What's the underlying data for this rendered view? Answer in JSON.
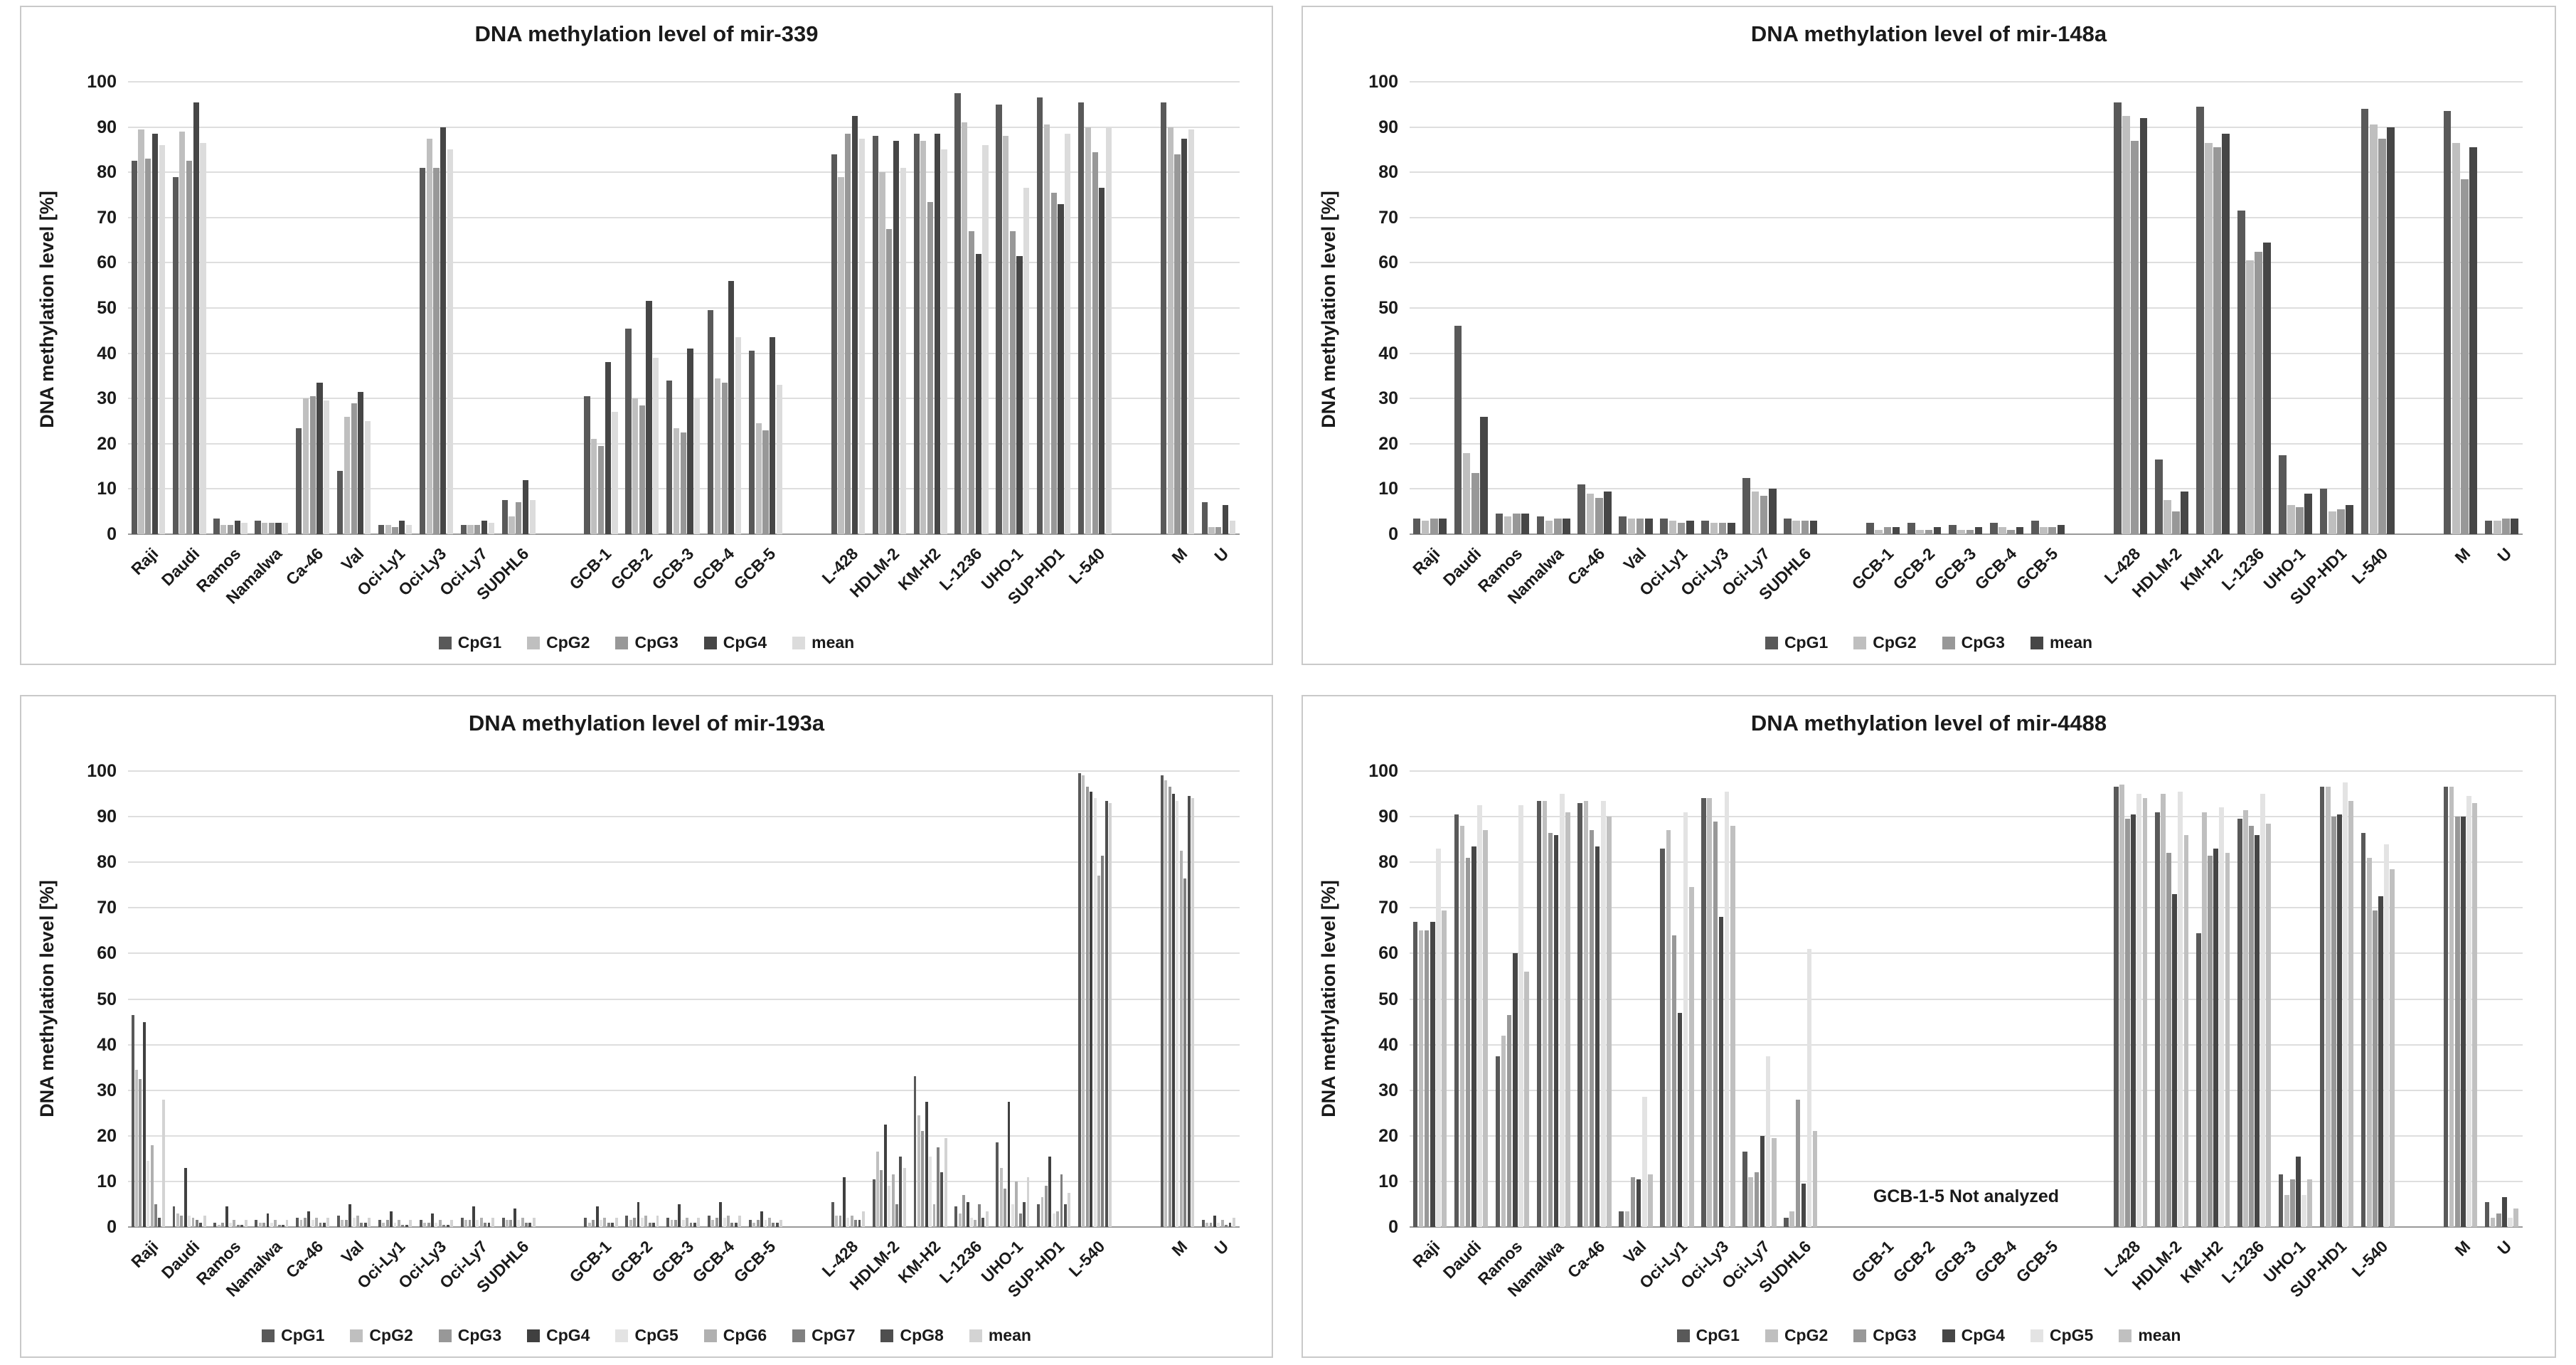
{
  "page": {
    "background": "#ffffff",
    "grid_color": "#dedede"
  },
  "chart_data": [
    {
      "type": "bar",
      "title": "DNA methylation level of mir-339",
      "xlabel": "",
      "ylabel": "DNA methylation level [%]",
      "ylim": [
        0,
        100
      ],
      "ytick_step": 10,
      "grid": true,
      "legend_position": "bottom",
      "categories": [
        "Raji",
        "Daudi",
        "Ramos",
        "Namalwa",
        "Ca-46",
        "Val",
        "Oci-Ly1",
        "Oci-Ly3",
        "Oci-Ly7",
        "SUDHL6",
        "GCB-1",
        "GCB-2",
        "GCB-3",
        "GCB-4",
        "GCB-5",
        "L-428",
        "HDLM-2",
        "KM-H2",
        "L-1236",
        "UHO-1",
        "SUP-HD1",
        "L-540",
        "M",
        "U"
      ],
      "gaps_after": [
        9,
        14,
        21
      ],
      "series": [
        {
          "name": "CpG1",
          "color": "#595959",
          "values": [
            82.5,
            79,
            3.5,
            3,
            23.5,
            14,
            2,
            81,
            2,
            7.5,
            30.5,
            45.5,
            34,
            49.5,
            40.5,
            84,
            88,
            88.5,
            97.5,
            95,
            96.5,
            95.5,
            95.5,
            7
          ]
        },
        {
          "name": "CpG2",
          "color": "#bfbfbf",
          "values": [
            89.5,
            89,
            2,
            2.5,
            30,
            26,
            2,
            87.5,
            2,
            4,
            21,
            30,
            23.5,
            34.5,
            24.5,
            79,
            80,
            87,
            91,
            88,
            90.5,
            90,
            90,
            1.5
          ]
        },
        {
          "name": "CpG3",
          "color": "#989898",
          "values": [
            83,
            82.5,
            2,
            2.5,
            30.5,
            29,
            1.5,
            81,
            2,
            7,
            19.5,
            28.5,
            22.5,
            33.5,
            23,
            88.5,
            67.5,
            73.5,
            67,
            67,
            75.5,
            84.5,
            84,
            1.5
          ]
        },
        {
          "name": "CpG4",
          "color": "#464646",
          "values": [
            88.5,
            95.5,
            3,
            2.5,
            33.5,
            31.5,
            3,
            90,
            3,
            12,
            38,
            51.5,
            41,
            56,
            43.5,
            92.5,
            87,
            88.5,
            62,
            61.5,
            73,
            76.5,
            87.5,
            6.5
          ]
        },
        {
          "name": "mean",
          "color": "#dcdcdc",
          "values": [
            86,
            86.5,
            2.5,
            2.5,
            29.5,
            25,
            2,
            85,
            2.5,
            7.5,
            27,
            39,
            30,
            43.5,
            33,
            87.5,
            81,
            85,
            86,
            76.5,
            88.5,
            90,
            89.5,
            3
          ]
        }
      ]
    },
    {
      "type": "bar",
      "title": "DNA methylation level of mir-148a",
      "xlabel": "",
      "ylabel": "DNA methylation level [%]",
      "ylim": [
        0,
        100
      ],
      "ytick_step": 10,
      "grid": true,
      "legend_position": "bottom",
      "categories": [
        "Raji",
        "Daudi",
        "Ramos",
        "Namalwa",
        "Ca-46",
        "Val",
        "Oci-Ly1",
        "Oci-Ly3",
        "Oci-Ly7",
        "SUDHL6",
        "GCB-1",
        "GCB-2",
        "GCB-3",
        "GCB-4",
        "GCB-5",
        "L-428",
        "HDLM-2",
        "KM-H2",
        "L-1236",
        "UHO-1",
        "SUP-HD1",
        "L-540",
        "M",
        "U"
      ],
      "gaps_after": [
        9,
        14,
        21
      ],
      "series": [
        {
          "name": "CpG1",
          "color": "#595959",
          "values": [
            3.5,
            46,
            4.5,
            4,
            11,
            4,
            3.5,
            3,
            12.5,
            3.5,
            2.5,
            2.5,
            2,
            2.5,
            3,
            95.5,
            16.5,
            94.5,
            71.5,
            17.5,
            10,
            94,
            93.5,
            3
          ]
        },
        {
          "name": "CpG2",
          "color": "#bfbfbf",
          "values": [
            3,
            18,
            4,
            3,
            9,
            3.5,
            3,
            2.5,
            9.5,
            3,
            1,
            1,
            1,
            1.5,
            1.5,
            92.5,
            7.5,
            86.5,
            60.5,
            6.5,
            5,
            90.5,
            86.5,
            3
          ]
        },
        {
          "name": "CpG3",
          "color": "#989898",
          "values": [
            3.5,
            13.5,
            4.5,
            3.5,
            8,
            3.5,
            2.5,
            2.5,
            8.5,
            3,
            1.5,
            1,
            1,
            1,
            1.5,
            87,
            5,
            85.5,
            62.5,
            6,
            5.5,
            87.5,
            78.5,
            3.5
          ]
        },
        {
          "name": "mean",
          "color": "#464646",
          "values": [
            3.5,
            26,
            4.5,
            3.5,
            9.5,
            3.5,
            3,
            2.5,
            10,
            3,
            1.5,
            1.5,
            1.5,
            1.5,
            2,
            92,
            9.5,
            88.5,
            64.5,
            9,
            6.5,
            90,
            85.5,
            3.5
          ]
        }
      ]
    },
    {
      "type": "bar",
      "title": "DNA methylation level of mir-193a",
      "xlabel": "",
      "ylabel": "DNA methylation level [%]",
      "ylim": [
        0,
        100
      ],
      "ytick_step": 10,
      "grid": true,
      "legend_position": "bottom",
      "categories": [
        "Raji",
        "Daudi",
        "Ramos",
        "Namalwa",
        "Ca-46",
        "Val",
        "Oci-Ly1",
        "Oci-Ly3",
        "Oci-Ly7",
        "SUDHL6",
        "GCB-1",
        "GCB-2",
        "GCB-3",
        "GCB-4",
        "GCB-5",
        "L-428",
        "HDLM-2",
        "KM-H2",
        "L-1236",
        "UHO-1",
        "SUP-HD1",
        "L-540",
        "M",
        "U"
      ],
      "gaps_after": [
        9,
        14,
        21
      ],
      "series": [
        {
          "name": "CpG1",
          "color": "#595959",
          "values": [
            46.5,
            4.5,
            1,
            1.5,
            2,
            2.5,
            1.5,
            1.5,
            2,
            2,
            2,
            2.5,
            2,
            2.5,
            1.5,
            5.5,
            10.5,
            33,
            4.5,
            18.5,
            5,
            99.5,
            99,
            1.5
          ]
        },
        {
          "name": "CpG2",
          "color": "#bfbfbf",
          "values": [
            34.5,
            3,
            0.5,
            1,
            1.5,
            1.5,
            1,
            1,
            1.5,
            1.5,
            1,
            1.5,
            1.5,
            1.5,
            1,
            2.5,
            16.5,
            24.5,
            3,
            13,
            6.5,
            99,
            98,
            1
          ]
        },
        {
          "name": "CpG3",
          "color": "#989898",
          "values": [
            32.5,
            2.5,
            1,
            1,
            2,
            1.5,
            1.5,
            1,
            1.5,
            1.5,
            1.5,
            2,
            1.5,
            2,
            1.5,
            2.5,
            12.5,
            21,
            7,
            8.5,
            9,
            96.5,
            96.5,
            1
          ]
        },
        {
          "name": "CpG4",
          "color": "#404040",
          "values": [
            45,
            13,
            4.5,
            3,
            3.5,
            5,
            3.5,
            3,
            4.5,
            4,
            4.5,
            5.5,
            5,
            5.5,
            3.5,
            11,
            22.5,
            27.5,
            5.5,
            27.5,
            15.5,
            95.5,
            95,
            2.5
          ]
        },
        {
          "name": "CpG5",
          "color": "#e3e3e3",
          "values": [
            14.5,
            2.5,
            1,
            1,
            1.5,
            2,
            1,
            1,
            1.5,
            1.5,
            1.5,
            2,
            1.5,
            2,
            1.5,
            2,
            9,
            15.5,
            2,
            5,
            3,
            94,
            93.5,
            1
          ]
        },
        {
          "name": "CpG6",
          "color": "#b0b0b0",
          "values": [
            18,
            2,
            1.5,
            1.5,
            2,
            2.5,
            1.5,
            1.5,
            2,
            2,
            2,
            2.5,
            2,
            2.5,
            2,
            2.5,
            11.5,
            5,
            1.5,
            10,
            3.5,
            77,
            82.5,
            1.5
          ]
        },
        {
          "name": "CpG7",
          "color": "#808080",
          "values": [
            5,
            1.5,
            0.5,
            0.5,
            1,
            1,
            0.5,
            0.5,
            1,
            1,
            1,
            1,
            1,
            1,
            1,
            1.5,
            5,
            17.5,
            5,
            3,
            11.5,
            81.5,
            76.5,
            0.5
          ]
        },
        {
          "name": "CpG8",
          "color": "#4f4f4f",
          "values": [
            2,
            1,
            0.5,
            0.5,
            1,
            1,
            0.5,
            0.5,
            1,
            1,
            1,
            1,
            1,
            1,
            1,
            1.5,
            15.5,
            12,
            2,
            5.5,
            5,
            93.5,
            94.5,
            1
          ]
        },
        {
          "name": "mean",
          "color": "#d3d3d3",
          "values": [
            28,
            2.5,
            1.5,
            1.5,
            2,
            2,
            1.5,
            1.5,
            2,
            2,
            2,
            2.5,
            2,
            2.5,
            1.5,
            3.5,
            13,
            19.5,
            3.5,
            11,
            7.5,
            93,
            94,
            2
          ]
        }
      ]
    },
    {
      "type": "bar",
      "title": "DNA methylation level of mir-4488",
      "xlabel": "",
      "ylabel": "DNA methylation level [%]",
      "ylim": [
        0,
        100
      ],
      "ytick_step": 10,
      "grid": true,
      "legend_position": "bottom",
      "annotation": "GCB-1-5 Not analyzed",
      "categories": [
        "Raji",
        "Daudi",
        "Ramos",
        "Namalwa",
        "Ca-46",
        "Val",
        "Oci-Ly1",
        "Oci-Ly3",
        "Oci-Ly7",
        "SUDHL6",
        "GCB-1",
        "GCB-2",
        "GCB-3",
        "GCB-4",
        "GCB-5",
        "L-428",
        "HDLM-2",
        "KM-H2",
        "L-1236",
        "UHO-1",
        "SUP-HD1",
        "L-540",
        "M",
        "U"
      ],
      "gaps_after": [
        9,
        14,
        21
      ],
      "series": [
        {
          "name": "CpG1",
          "color": "#595959",
          "values": [
            67,
            90.5,
            37.5,
            93.5,
            93,
            3.5,
            83,
            94,
            16.5,
            2,
            null,
            null,
            null,
            null,
            null,
            96.5,
            91,
            64.5,
            89.5,
            11.5,
            96.5,
            86.5,
            96.5,
            5.5
          ]
        },
        {
          "name": "CpG2",
          "color": "#bfbfbf",
          "values": [
            65,
            88,
            42,
            93.5,
            93.5,
            3.5,
            87,
            94,
            11,
            3.5,
            null,
            null,
            null,
            null,
            null,
            97,
            95,
            91,
            91.5,
            7,
            96.5,
            81,
            96.5,
            2
          ]
        },
        {
          "name": "CpG3",
          "color": "#989898",
          "values": [
            65,
            81,
            46.5,
            86.5,
            87,
            11,
            64,
            89,
            12,
            28,
            null,
            null,
            null,
            null,
            null,
            89.5,
            82,
            81.5,
            88,
            10.5,
            90,
            69.5,
            90,
            3
          ]
        },
        {
          "name": "CpG4",
          "color": "#464646",
          "values": [
            67,
            83.5,
            60,
            86,
            83.5,
            10.5,
            47,
            68,
            20,
            9.5,
            null,
            null,
            null,
            null,
            null,
            90.5,
            73,
            83,
            86,
            15.5,
            90.5,
            72.5,
            90,
            6.5
          ]
        },
        {
          "name": "CpG5",
          "color": "#e3e3e3",
          "values": [
            83,
            92.5,
            92.5,
            95,
            93.5,
            28.5,
            91,
            95.5,
            37.5,
            61,
            null,
            null,
            null,
            null,
            null,
            95,
            95.5,
            92,
            95,
            7,
            97.5,
            84,
            94.5,
            2
          ]
        },
        {
          "name": "mean",
          "color": "#c0c0c0",
          "values": [
            69.5,
            87,
            56,
            91,
            90,
            11.5,
            74.5,
            88,
            19.5,
            21,
            null,
            null,
            null,
            null,
            null,
            94,
            86,
            82,
            88.5,
            10.5,
            93.5,
            78.5,
            93,
            4
          ]
        }
      ]
    }
  ]
}
